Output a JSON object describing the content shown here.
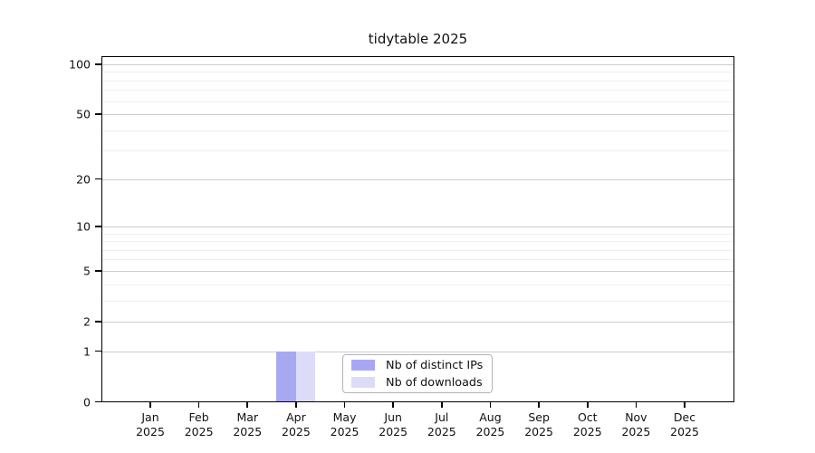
{
  "chart_data": {
    "type": "bar",
    "title": "tidytable 2025",
    "categories": [
      "Jan 2025",
      "Feb 2025",
      "Mar 2025",
      "Apr 2025",
      "May 2025",
      "Jun 2025",
      "Jul 2025",
      "Aug 2025",
      "Sep 2025",
      "Oct 2025",
      "Nov 2025",
      "Dec 2025"
    ],
    "series": [
      {
        "name": "Nb of distinct IPs",
        "color": "#a8a8f2",
        "values": [
          0,
          0,
          0,
          1,
          0,
          0,
          0,
          0,
          0,
          0,
          0,
          0
        ]
      },
      {
        "name": "Nb of downloads",
        "color": "#dcdcf8",
        "values": [
          0,
          0,
          0,
          1,
          0,
          0,
          0,
          0,
          0,
          0,
          0,
          0
        ]
      }
    ],
    "xlabel": "",
    "ylabel": "",
    "yticks": [
      0,
      1,
      2,
      5,
      10,
      20,
      50,
      100
    ],
    "minor_gridlines": [
      3,
      4,
      6,
      7,
      8,
      9,
      30,
      40,
      60,
      70,
      80,
      90
    ],
    "scale": "log1p",
    "ylim": [
      0,
      110
    ],
    "grid": "horizontal",
    "legend_position": "bottom-center",
    "colors": {
      "distinct_ips_bar": "#a8a8f2",
      "downloads_bar": "#dcdcf8",
      "major_gridline": "#cdcdcd",
      "minor_gridline": "#efefef",
      "axis": "#000000"
    }
  }
}
